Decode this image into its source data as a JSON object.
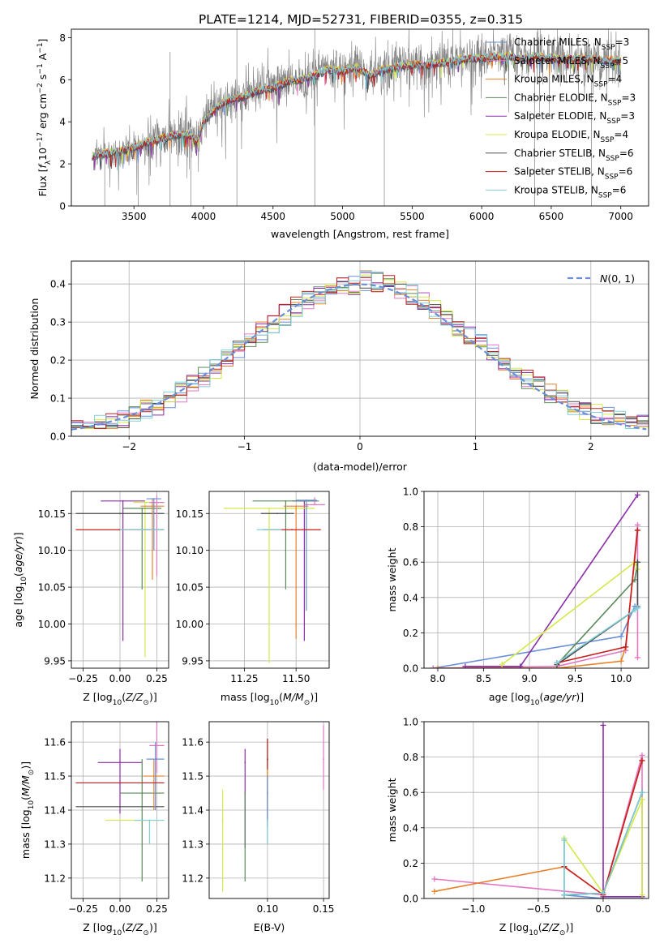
{
  "figure": {
    "title": "PLATE=1214, MJD=52731, FIBERID=0355, z=0.315"
  },
  "colors": {
    "chabrier_miles": "#6a8fd8",
    "salpeter_miles": "#e377c2",
    "kroupa_miles": "#e8822a",
    "chabrier_elodie": "#5a8a5a",
    "salpeter_elodie": "#8b2fa8",
    "kroupa_elodie": "#d4e84a",
    "chabrier_stelib": "#4a4a4a",
    "salpeter_stelib": "#c81e1e",
    "kroupa_stelib": "#7fd0d8",
    "data": "#808080",
    "gauss": "#6a8fd8"
  },
  "chart_data": [
    {
      "id": "spectrum",
      "type": "line",
      "xlabel": "wavelength [Angstrom, rest frame]",
      "ylabel": "Flux [f_λ10^-17 erg cm^-2 s^-1 A^-1]",
      "xlim": [
        3050,
        7200
      ],
      "ylim": [
        0,
        8.4
      ],
      "xticks": [
        3500,
        4000,
        4500,
        5000,
        5500,
        6000,
        6500,
        7000
      ],
      "yticks": [
        0,
        2,
        4,
        6,
        8
      ],
      "legend_loc": "right",
      "legend": [
        {
          "label": "Chabrier MILES, N_SSP=3",
          "main": "Chabrier MILES, N",
          "sub": "SSP",
          "tail": "=3",
          "color": "chabrier_miles"
        },
        {
          "label": "Salpeter MILES, N_SSP=5",
          "main": "Salpeter MILES, N",
          "sub": "SSP",
          "tail": "=5",
          "color": "salpeter_miles"
        },
        {
          "label": "Kroupa MILES, N_SSP=4",
          "main": "Kroupa MILES, N",
          "sub": "SSP",
          "tail": "=4",
          "color": "kroupa_miles"
        },
        {
          "label": "Chabrier ELODIE, N_SSP=3",
          "main": "Chabrier ELODIE, N",
          "sub": "SSP",
          "tail": "=3",
          "color": "chabrier_elodie"
        },
        {
          "label": "Salpeter ELODIE, N_SSP=3",
          "main": "Salpeter ELODIE, N",
          "sub": "SSP",
          "tail": "=3",
          "color": "salpeter_elodie"
        },
        {
          "label": "Kroupa ELODIE, N_SSP=4",
          "main": "Kroupa ELODIE, N",
          "sub": "SSP",
          "tail": "=4",
          "color": "kroupa_elodie"
        },
        {
          "label": "Chabrier STELIB, N_SSP=6",
          "main": "Chabrier STELIB, N",
          "sub": "SSP",
          "tail": "=6",
          "color": "chabrier_stelib"
        },
        {
          "label": "Salpeter STELIB, N_SSP=6",
          "main": "Salpeter STELIB, N",
          "sub": "SSP",
          "tail": "=6",
          "color": "salpeter_stelib"
        },
        {
          "label": "Kroupa STELIB, N_SSP=6",
          "main": "Kroupa STELIB, N",
          "sub": "SSP",
          "tail": "=6",
          "color": "kroupa_stelib"
        }
      ],
      "continuum": [
        [
          3200,
          2.4
        ],
        [
          3300,
          2.5
        ],
        [
          3400,
          2.6
        ],
        [
          3500,
          2.8
        ],
        [
          3600,
          3.0
        ],
        [
          3700,
          3.2
        ],
        [
          3800,
          3.4
        ],
        [
          3900,
          3.4
        ],
        [
          3950,
          3.0
        ],
        [
          4000,
          4.0
        ],
        [
          4100,
          4.7
        ],
        [
          4200,
          5.1
        ],
        [
          4300,
          5.2
        ],
        [
          4400,
          5.5
        ],
        [
          4500,
          5.6
        ],
        [
          4600,
          5.9
        ],
        [
          4700,
          6.0
        ],
        [
          4800,
          6.2
        ],
        [
          4900,
          6.5
        ],
        [
          5000,
          6.4
        ],
        [
          5100,
          6.6
        ],
        [
          5200,
          6.2
        ],
        [
          5300,
          6.5
        ],
        [
          5400,
          6.6
        ],
        [
          5500,
          6.7
        ],
        [
          5600,
          6.7
        ],
        [
          5700,
          6.8
        ],
        [
          5800,
          6.9
        ],
        [
          5900,
          7.0
        ],
        [
          6000,
          7.0
        ],
        [
          6100,
          7.1
        ],
        [
          6200,
          7.1
        ],
        [
          6300,
          7.0
        ],
        [
          6400,
          7.1
        ],
        [
          6500,
          7.0
        ],
        [
          6600,
          7.0
        ],
        [
          6700,
          7.0
        ],
        [
          6800,
          7.0
        ],
        [
          6900,
          6.9
        ],
        [
          7000,
          6.9
        ]
      ],
      "wavelength_range": [
        3200,
        7000
      ]
    },
    {
      "id": "residuals",
      "type": "line",
      "xlabel": "(data-model)/error",
      "ylabel": "Normed distribution",
      "xlim": [
        -2.5,
        2.5
      ],
      "ylim": [
        0,
        0.46
      ],
      "xticks": [
        -2,
        -1,
        0,
        1,
        2
      ],
      "yticks": [
        0.0,
        0.1,
        0.2,
        0.3,
        0.4
      ],
      "legend_loc": "upper right",
      "legend": [
        {
          "label": "N(0,1)",
          "color": "gauss",
          "style": "dashed"
        }
      ],
      "bin_width": 0.1,
      "gaussian": {
        "mean": 0,
        "sigma": 1
      }
    },
    {
      "id": "age_vs_Z",
      "type": "scatter",
      "xlabel": "Z [log10(Z/Z⊙)]",
      "ylabel": "age  [log10(age/yr)]",
      "xlim": [
        -0.33,
        0.33
      ],
      "ylim": [
        9.94,
        10.18
      ],
      "xticks": [
        -0.25,
        0.0,
        0.25
      ],
      "yticks": [
        9.95,
        10.0,
        10.05,
        10.1,
        10.15
      ],
      "points": [
        {
          "x": 0.02,
          "y": 10.167,
          "xerr": 0.15,
          "yerr_lo": 0.19,
          "yerr_hi": 0.0,
          "color": "salpeter_elodie"
        },
        {
          "x": 0.17,
          "y": 10.165,
          "xerr": 0.08,
          "yerr_lo": 0.21,
          "yerr_hi": 0.0,
          "color": "kroupa_elodie"
        },
        {
          "x": 0.15,
          "y": 10.157,
          "xerr": 0.13,
          "yerr_lo": 0.11,
          "yerr_hi": 0.0,
          "color": "chabrier_elodie"
        },
        {
          "x": 0.0,
          "y": 10.15,
          "xerr": 0.3,
          "yerr_lo": 0.0,
          "yerr_hi": 0.0,
          "color": "chabrier_stelib"
        },
        {
          "x": 0.22,
          "y": 10.16,
          "xerr": 0.08,
          "yerr_lo": 0.1,
          "yerr_hi": 0.01,
          "color": "kroupa_miles"
        },
        {
          "x": 0.25,
          "y": 10.165,
          "xerr": 0.05,
          "yerr_lo": 0.1,
          "yerr_hi": 0.01,
          "color": "salpeter_miles"
        },
        {
          "x": 0.23,
          "y": 10.17,
          "xerr": 0.05,
          "yerr_lo": 0.07,
          "yerr_hi": 0.0,
          "color": "chabrier_miles"
        },
        {
          "x": 0.0,
          "y": 10.128,
          "xerr": 0.3,
          "yerr_lo": 0.0,
          "yerr_hi": 0.0,
          "color": "salpeter_stelib"
        },
        {
          "x": 0.15,
          "y": 10.128,
          "xerr": 0.15,
          "yerr_lo": 0.0,
          "yerr_hi": 0.0,
          "color": "kroupa_stelib"
        }
      ]
    },
    {
      "id": "age_vs_mass",
      "type": "scatter",
      "xlabel": "mass [log10(M/M⊙)]",
      "ylabel": "",
      "xlim": [
        11.08,
        11.66
      ],
      "ylim": [
        9.94,
        10.18
      ],
      "xticks": [
        11.25,
        11.5
      ],
      "yticks": [
        9.95,
        10.0,
        10.05,
        10.1,
        10.15
      ],
      "points": [
        {
          "x": 11.54,
          "y": 10.167,
          "xerr": 0.06,
          "yerr_lo": 0.19,
          "yerr_hi": 0.0,
          "color": "salpeter_elodie"
        },
        {
          "x": 11.37,
          "y": 10.157,
          "xerr": 0.22,
          "yerr_lo": 0.21,
          "yerr_hi": 0.0,
          "color": "kroupa_elodie"
        },
        {
          "x": 11.45,
          "y": 10.167,
          "xerr": 0.16,
          "yerr_lo": 0.12,
          "yerr_hi": 0.0,
          "color": "chabrier_elodie"
        },
        {
          "x": 11.41,
          "y": 10.15,
          "xerr": 0.08,
          "yerr_lo": 0.0,
          "yerr_hi": 0.0,
          "color": "chabrier_stelib"
        },
        {
          "x": 11.5,
          "y": 10.16,
          "xerr": 0.06,
          "yerr_lo": 0.18,
          "yerr_hi": 0.0,
          "color": "kroupa_miles"
        },
        {
          "x": 11.59,
          "y": 10.162,
          "xerr": 0.05,
          "yerr_lo": 0.0,
          "yerr_hi": 0.01,
          "color": "salpeter_miles"
        },
        {
          "x": 11.55,
          "y": 10.168,
          "xerr": 0.05,
          "yerr_lo": 0.15,
          "yerr_hi": 0.0,
          "color": "chabrier_miles"
        },
        {
          "x": 11.48,
          "y": 10.128,
          "xerr": 0.14,
          "yerr_lo": 0.0,
          "yerr_hi": 0.0,
          "color": "salpeter_stelib"
        },
        {
          "x": 11.37,
          "y": 10.128,
          "xerr": 0.06,
          "yerr_lo": 0.0,
          "yerr_hi": 0.0,
          "color": "kroupa_stelib"
        }
      ]
    },
    {
      "id": "weight_vs_age",
      "type": "line",
      "xlabel": "age  [log10(age/yr)]",
      "ylabel": "mass weight",
      "xlim": [
        7.85,
        10.3
      ],
      "ylim": [
        0,
        1.0
      ],
      "xticks": [
        8.0,
        8.5,
        9.0,
        9.5,
        10.0
      ],
      "yticks": [
        0.0,
        0.2,
        0.4,
        0.6,
        0.8,
        1.0
      ],
      "series": [
        {
          "color": "chabrier_miles",
          "x": [
            7.95,
            10.0,
            10.15,
            10.18
          ],
          "y": [
            0.0,
            0.18,
            0.35,
            0.35
          ]
        },
        {
          "color": "salpeter_miles",
          "x": [
            7.95,
            9.3,
            10.05,
            10.18,
            10.18
          ],
          "y": [
            0.0,
            0.01,
            0.1,
            0.81,
            0.06
          ]
        },
        {
          "color": "kroupa_miles",
          "x": [
            8.0,
            9.3,
            10.0,
            10.05,
            10.18
          ],
          "y": [
            0.0,
            0.0,
            0.04,
            0.12,
            0.78
          ]
        },
        {
          "color": "chabrier_elodie",
          "x": [
            9.3,
            10.15,
            10.18
          ],
          "y": [
            0.02,
            0.5,
            0.6
          ]
        },
        {
          "color": "salpeter_elodie",
          "x": [
            8.3,
            8.9,
            10.18
          ],
          "y": [
            0.01,
            0.01,
            0.98
          ]
        },
        {
          "color": "kroupa_elodie",
          "x": [
            8.7,
            10.15,
            10.18
          ],
          "y": [
            0.02,
            0.6,
            0.56
          ]
        },
        {
          "color": "chabrier_stelib",
          "x": [
            9.3,
            10.18,
            10.18
          ],
          "y": [
            0.02,
            0.34,
            0.6
          ]
        },
        {
          "color": "salpeter_stelib",
          "x": [
            9.3,
            10.05,
            10.18
          ],
          "y": [
            0.03,
            0.12,
            0.78
          ]
        },
        {
          "color": "kroupa_stelib",
          "x": [
            9.3,
            10.15,
            10.18
          ],
          "y": [
            0.03,
            0.33,
            0.34
          ]
        }
      ]
    },
    {
      "id": "mass_vs_Z",
      "type": "scatter",
      "xlabel": "Z [log10(Z/Z⊙)]",
      "ylabel": "mass [log10(M/M⊙)]",
      "xlim": [
        -0.33,
        0.33
      ],
      "ylim": [
        11.14,
        11.66
      ],
      "xticks": [
        -0.25,
        0.0,
        0.25
      ],
      "yticks": [
        11.2,
        11.3,
        11.4,
        11.5,
        11.6
      ],
      "points": [
        {
          "x": 0.0,
          "y": 11.54,
          "xerr": 0.15,
          "yerr_lo": 0.15,
          "yerr_hi": 0.04,
          "color": "salpeter_elodie"
        },
        {
          "x": 0.1,
          "y": 11.37,
          "xerr": 0.2,
          "yerr_lo": 0.0,
          "yerr_hi": 0.0,
          "color": "kroupa_elodie"
        },
        {
          "x": 0.15,
          "y": 11.45,
          "xerr": 0.15,
          "yerr_lo": 0.26,
          "yerr_hi": 0.1,
          "color": "chabrier_elodie"
        },
        {
          "x": 0.0,
          "y": 11.41,
          "xerr": 0.3,
          "yerr_lo": 0.0,
          "yerr_hi": 0.0,
          "color": "chabrier_stelib"
        },
        {
          "x": 0.23,
          "y": 11.5,
          "xerr": 0.07,
          "yerr_lo": 0.1,
          "yerr_hi": 0.05,
          "color": "kroupa_miles"
        },
        {
          "x": 0.25,
          "y": 11.59,
          "xerr": 0.05,
          "yerr_lo": 0.08,
          "yerr_hi": 0.07,
          "color": "salpeter_miles"
        },
        {
          "x": 0.24,
          "y": 11.55,
          "xerr": 0.06,
          "yerr_lo": 0.15,
          "yerr_hi": 0.05,
          "color": "chabrier_miles"
        },
        {
          "x": 0.0,
          "y": 11.48,
          "xerr": 0.3,
          "yerr_lo": 0.0,
          "yerr_hi": 0.0,
          "color": "salpeter_stelib"
        },
        {
          "x": 0.2,
          "y": 11.37,
          "xerr": 0.1,
          "yerr_lo": 0.07,
          "yerr_hi": 0.0,
          "color": "kroupa_stelib"
        }
      ]
    },
    {
      "id": "mass_vs_ebv",
      "type": "scatter",
      "xlabel": "E(B-V)",
      "ylabel": "",
      "xlim": [
        0.048,
        0.155
      ],
      "ylim": [
        11.14,
        11.66
      ],
      "xticks": [
        0.1,
        0.15
      ],
      "yticks": [
        11.2,
        11.3,
        11.4,
        11.5,
        11.6
      ],
      "points": [
        {
          "x": 0.08,
          "y": 11.54,
          "yerr_lo": 0.25,
          "yerr_hi": 0.04,
          "color": "salpeter_elodie"
        },
        {
          "x": 0.06,
          "y": 11.37,
          "yerr_lo": 0.21,
          "yerr_hi": 0.09,
          "color": "kroupa_elodie"
        },
        {
          "x": 0.08,
          "y": 11.45,
          "yerr_lo": 0.26,
          "yerr_hi": 0.0,
          "color": "chabrier_elodie"
        },
        {
          "x": 0.1,
          "y": 11.55,
          "yerr_lo": 0.2,
          "yerr_hi": 0.06,
          "color": "chabrier_stelib"
        },
        {
          "x": 0.1,
          "y": 11.5,
          "yerr_lo": 0.1,
          "yerr_hi": 0.05,
          "color": "kroupa_miles"
        },
        {
          "x": 0.15,
          "y": 11.55,
          "yerr_lo": 0.09,
          "yerr_hi": 0.1,
          "color": "salpeter_miles"
        },
        {
          "x": 0.1,
          "y": 11.45,
          "yerr_lo": 0.15,
          "yerr_hi": 0.05,
          "color": "chabrier_miles"
        },
        {
          "x": 0.1,
          "y": 11.55,
          "yerr_lo": 0.03,
          "yerr_hi": 0.06,
          "color": "salpeter_stelib"
        },
        {
          "x": 0.1,
          "y": 11.37,
          "yerr_lo": 0.07,
          "yerr_hi": 0.0,
          "color": "kroupa_stelib"
        }
      ]
    },
    {
      "id": "weight_vs_Z",
      "type": "line",
      "xlabel": "Z [log10(Z/Z⊙)]",
      "ylabel": "mass weight",
      "xlim": [
        -1.38,
        0.35
      ],
      "ylim": [
        0,
        1.0
      ],
      "xticks": [
        -1.0,
        -0.5,
        0.0
      ],
      "yticks": [
        0.0,
        0.2,
        0.4,
        0.6,
        0.8,
        1.0
      ],
      "series": [
        {
          "color": "chabrier_miles",
          "x": [
            -0.3,
            -0.3,
            0.0,
            0.3
          ],
          "y": [
            0.34,
            0.02,
            0.0,
            0.0
          ]
        },
        {
          "color": "salpeter_miles",
          "x": [
            -1.3,
            0.0,
            0.3,
            0.3
          ],
          "y": [
            0.11,
            0.02,
            0.81,
            0.0
          ]
        },
        {
          "color": "kroupa_miles",
          "x": [
            -1.3,
            -0.3,
            0.0,
            0.3
          ],
          "y": [
            0.04,
            0.18,
            0.02,
            0.78
          ]
        },
        {
          "color": "chabrier_elodie",
          "x": [
            -0.3,
            0.0,
            0.3
          ],
          "y": [
            0.02,
            0.03,
            0.6
          ]
        },
        {
          "color": "salpeter_elodie",
          "x": [
            0.0,
            0.0,
            0.3
          ],
          "y": [
            0.98,
            0.01,
            0.01
          ]
        },
        {
          "color": "kroupa_elodie",
          "x": [
            -0.3,
            0.0,
            0.3,
            0.3
          ],
          "y": [
            0.34,
            0.03,
            0.56,
            0.02
          ]
        },
        {
          "color": "chabrier_stelib",
          "x": [
            -0.3,
            0.0,
            0.3
          ],
          "y": [
            0.02,
            0.03,
            0.6
          ]
        },
        {
          "color": "salpeter_stelib",
          "x": [
            -0.3,
            0.0,
            0.3
          ],
          "y": [
            0.18,
            0.02,
            0.78
          ]
        },
        {
          "color": "kroupa_stelib",
          "x": [
            -0.3,
            -0.3,
            0.0,
            0.3
          ],
          "y": [
            0.33,
            0.02,
            0.03,
            0.6
          ]
        }
      ]
    }
  ]
}
